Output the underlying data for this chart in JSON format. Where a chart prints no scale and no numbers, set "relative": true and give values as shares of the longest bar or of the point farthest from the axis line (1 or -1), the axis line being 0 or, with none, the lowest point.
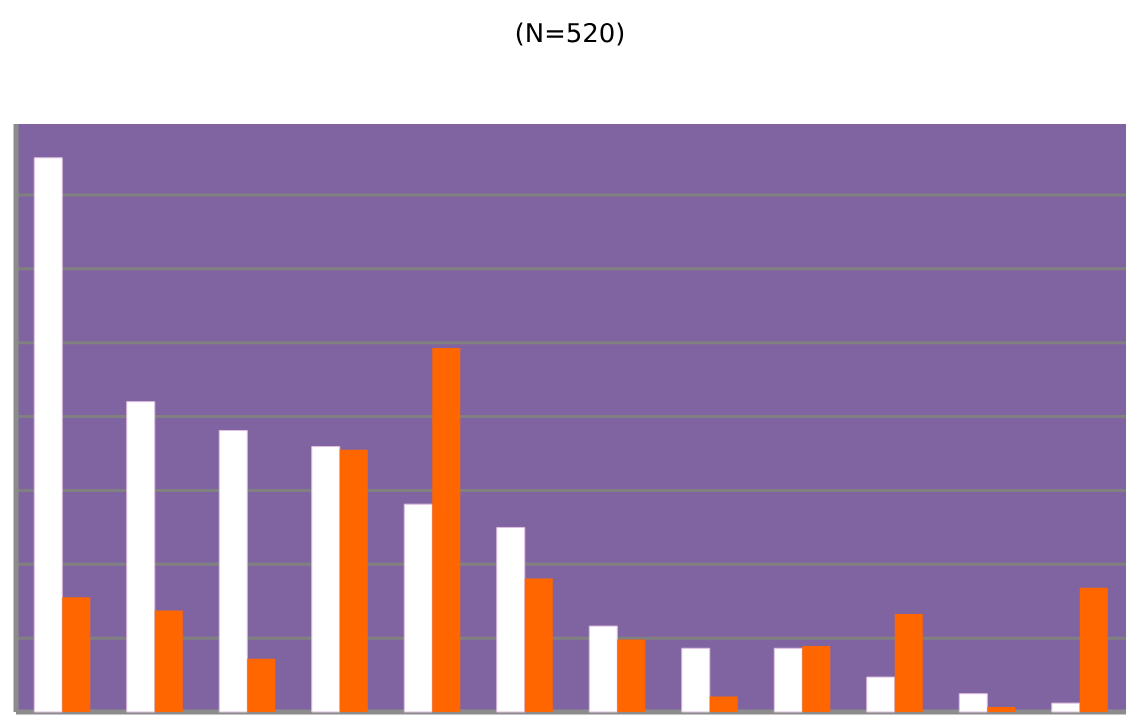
{
  "chart_data": {
    "type": "bar",
    "title": "(N=520)",
    "relative": true,
    "grid": "y",
    "categories": [
      null,
      null,
      null,
      null,
      null,
      null,
      null,
      null,
      null,
      null,
      null,
      null
    ],
    "series": [
      {
        "color": "#ffffff",
        "values": [
          1,
          0.56,
          0.508,
          0.479,
          0.375,
          0.333,
          0.155,
          0.115,
          0.115,
          0.063,
          0.033,
          0.016
        ]
      },
      {
        "color": "#ff6600",
        "values": [
          0.207,
          0.183,
          0.096,
          0.473,
          0.657,
          0.241,
          0.131,
          0.028,
          0.119,
          0.177,
          0.009,
          0.224
        ]
      }
    ]
  }
}
